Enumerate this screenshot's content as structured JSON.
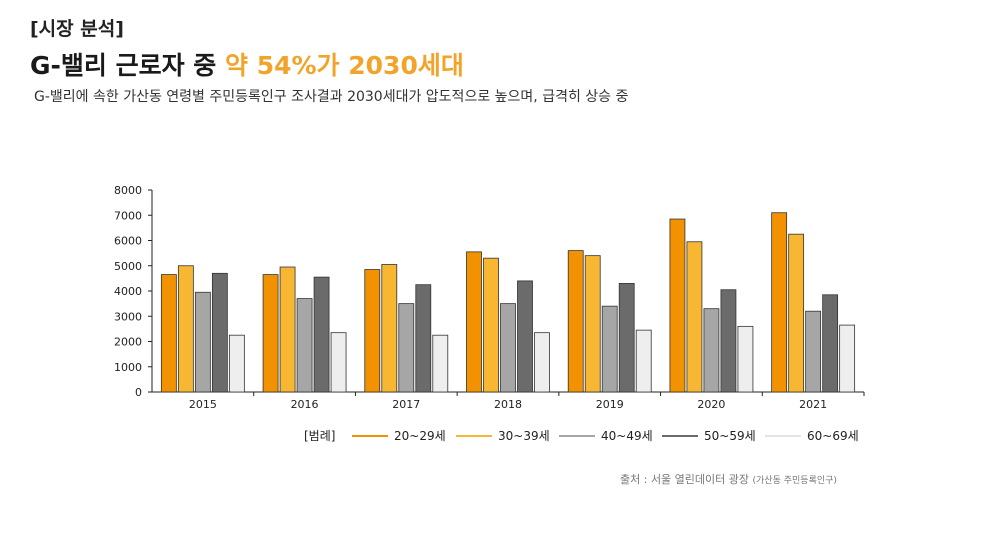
{
  "header": {
    "tag": "[시장 분석]",
    "title_prefix": "G-밸리 근로자 중 ",
    "title_highlight": "약 54%가 2030세대",
    "subtitle": "G-밸리에 속한 가산동 연령별 주민등록인구 조사결과 2030세대가 압도적으로 높으며, 급격히 상승 중"
  },
  "source": {
    "text": "출처 : 서울 열린데이터 광장",
    "note": "(가산동 주민등록인구)"
  },
  "chart_data": {
    "type": "bar",
    "categories": [
      "2015",
      "2016",
      "2017",
      "2018",
      "2019",
      "2020",
      "2021"
    ],
    "ylim": [
      0,
      8000
    ],
    "yticks": [
      0,
      1000,
      2000,
      3000,
      4000,
      5000,
      6000,
      7000,
      8000
    ],
    "legend_title": "[범례]",
    "legend_position": "bottom",
    "grid": false,
    "series": [
      {
        "name": "20~29세",
        "color": "#f39200",
        "values": [
          4650,
          4650,
          4850,
          5550,
          5600,
          6850,
          7100
        ]
      },
      {
        "name": "30~39세",
        "color": "#f7b733",
        "values": [
          5000,
          4950,
          5050,
          5300,
          5400,
          5950,
          6250
        ]
      },
      {
        "name": "40~49세",
        "color": "#a6a6a6",
        "values": [
          3950,
          3700,
          3500,
          3500,
          3400,
          3300,
          3200
        ]
      },
      {
        "name": "50~59세",
        "color": "#6b6b6b",
        "values": [
          4700,
          4550,
          4250,
          4400,
          4300,
          4050,
          3850
        ]
      },
      {
        "name": "60~69세",
        "color": "#eeeeee",
        "values": [
          2250,
          2350,
          2250,
          2350,
          2450,
          2600,
          2650
        ]
      }
    ]
  }
}
